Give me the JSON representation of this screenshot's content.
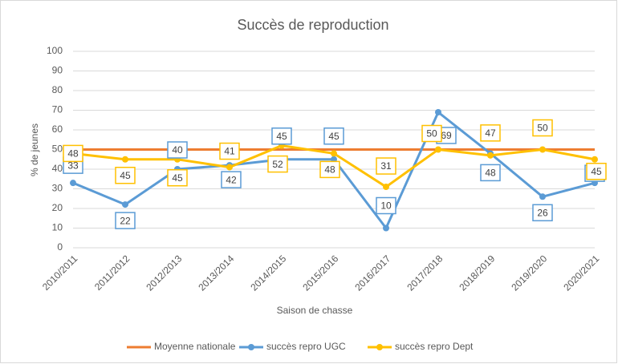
{
  "chart_data": {
    "type": "line",
    "title": "Succès de reproduction",
    "y_label": "% de jeunes",
    "x_label": "Saison de chasse",
    "categories": [
      "2010/2011",
      "2011/2012",
      "2012/2013",
      "2013/2014",
      "2014/2015",
      "2015/2016",
      "2016/2017",
      "2017/2018",
      "2018/2019",
      "2019/2020",
      "2020/2021"
    ],
    "series": [
      {
        "name": "Moyenne nationale",
        "color": "#ed7d31",
        "values": [
          50,
          50,
          50,
          50,
          50,
          50,
          50,
          50,
          50,
          50,
          50
        ]
      },
      {
        "name": "succès repro UGC",
        "color": "#5b9bd5",
        "values": [
          33,
          22,
          40,
          42,
          45,
          45,
          10,
          69,
          48,
          26,
          33
        ],
        "data_labels": true
      },
      {
        "name": "succès repro Dept",
        "color": "#ffc000",
        "values": [
          48,
          45,
          45,
          41,
          52,
          48,
          31,
          50,
          47,
          50,
          45
        ],
        "data_labels": true
      }
    ],
    "ylim": [
      0,
      100
    ],
    "yticks": [
      0,
      10,
      20,
      30,
      40,
      50,
      60,
      70,
      80,
      90,
      100
    ],
    "grid": true,
    "legend": "bottom"
  }
}
